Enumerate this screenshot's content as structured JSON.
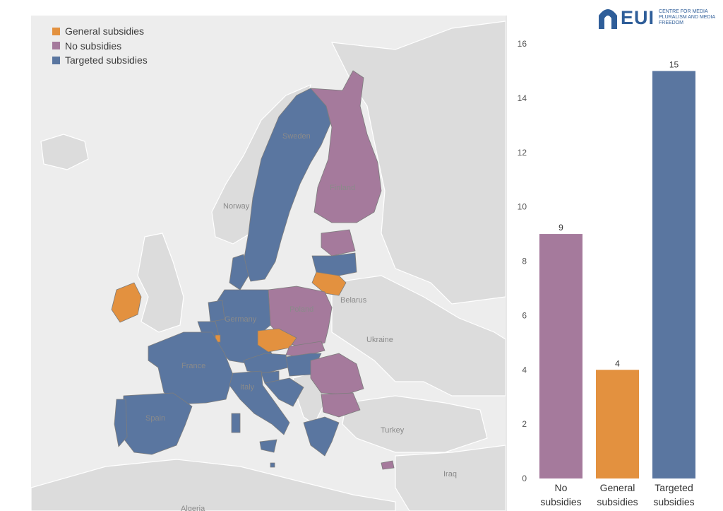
{
  "logo": {
    "text": "EUI",
    "subtitle": "CENTRE FOR MEDIA PLURALISM AND MEDIA FREEDOM"
  },
  "legend": [
    {
      "label": "General subsidies",
      "color": "#E3913F"
    },
    {
      "label": "No subsidies",
      "color": "#A57A9C"
    },
    {
      "label": "Targeted subsidies",
      "color": "#5A76A0"
    }
  ],
  "map": {
    "country_labels": [
      "Sweden",
      "Finland",
      "Norway",
      "Poland",
      "Belarus",
      "Germany",
      "France",
      "Spain",
      "Ukraine",
      "Turkey",
      "Iraq",
      "Algeria",
      "Italy"
    ]
  },
  "chart_data": {
    "type": "bar",
    "categories": [
      "No subsidies",
      "General subsidies",
      "Targeted subsidies"
    ],
    "category_lines": [
      [
        "No",
        "subsidies"
      ],
      [
        "General",
        "subsidies"
      ],
      [
        "Targeted",
        "subsidies"
      ]
    ],
    "values": [
      9,
      4,
      15
    ],
    "colors": [
      "#A57A9C",
      "#E3913F",
      "#5A76A0"
    ],
    "ylim": [
      0,
      16
    ],
    "yticks": [
      0,
      2,
      4,
      6,
      8,
      10,
      12,
      14,
      16
    ],
    "title": "",
    "xlabel": "",
    "ylabel": "",
    "grid": false
  }
}
